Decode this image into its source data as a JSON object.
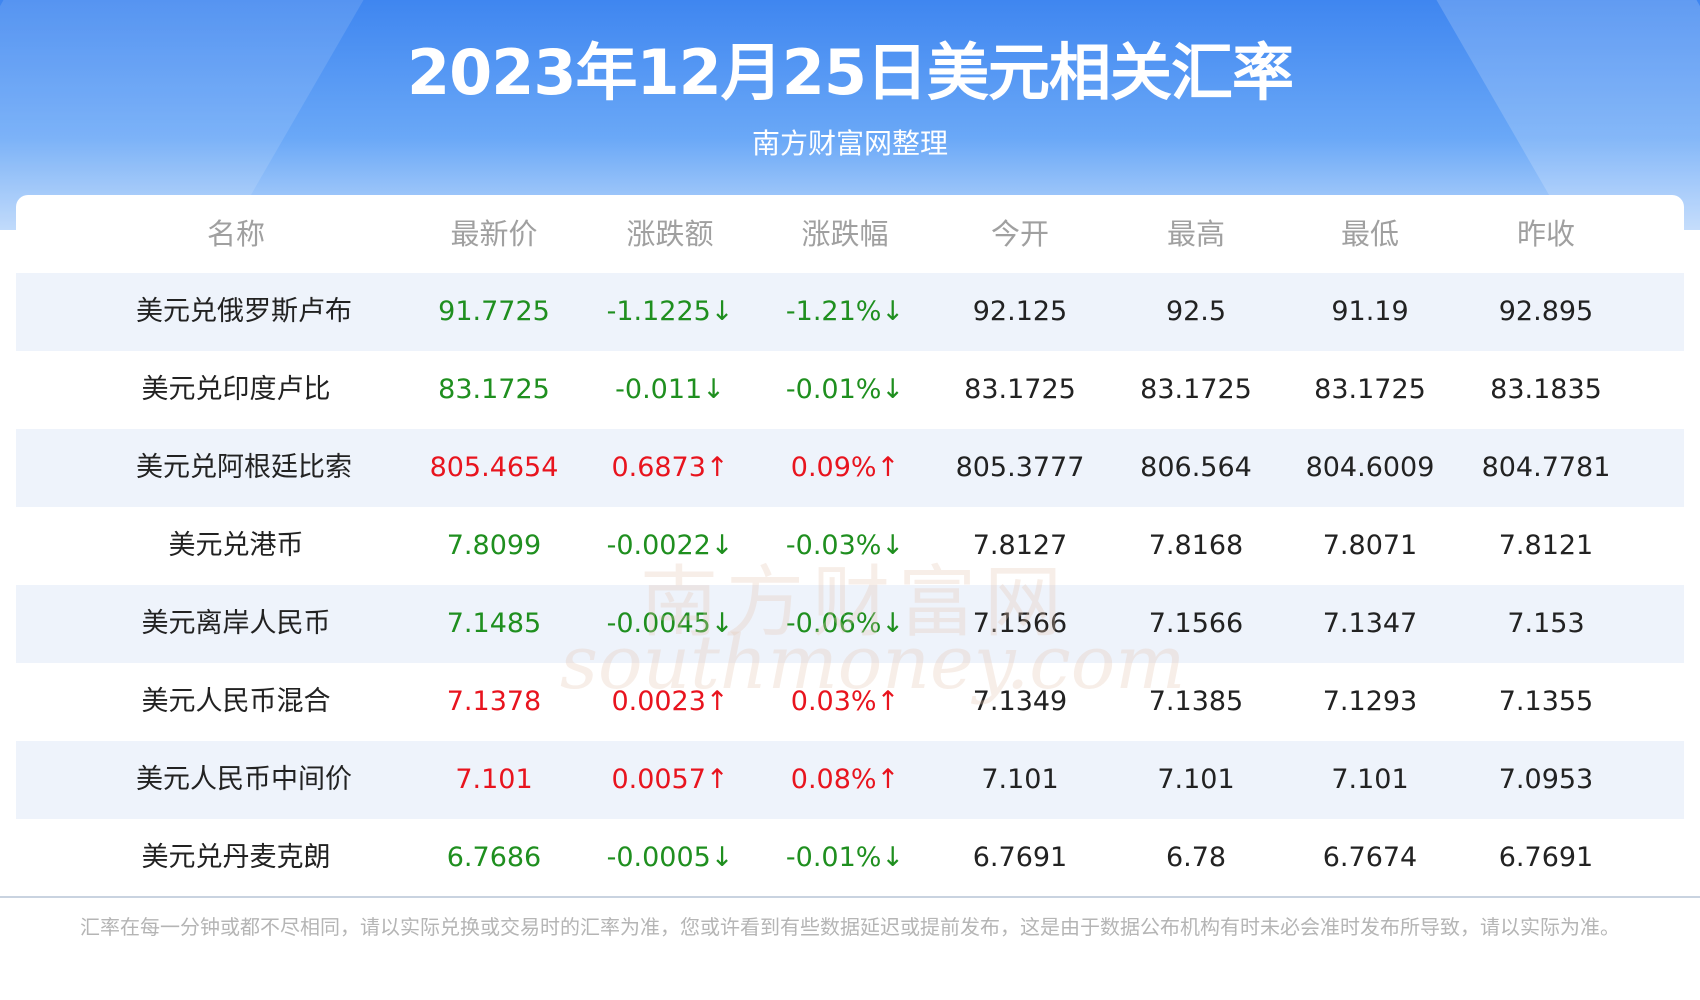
{
  "header": {
    "title": "2023年12月25日美元相关汇率",
    "subtitle": "南方财富网整理"
  },
  "table": {
    "columns": [
      "名称",
      "最新价",
      "涨跌额",
      "涨跌幅",
      "今开",
      "最高",
      "最低",
      "昨收"
    ],
    "rows": [
      {
        "cells": [
          "美元兑俄罗斯卢布",
          "91.7725",
          "-1.1225↓",
          "-1.21%↓",
          "92.125",
          "92.5",
          "91.19",
          "92.895"
        ],
        "color": "#1f8f1f"
      },
      {
        "cells": [
          "美元兑印度卢比",
          "83.1725",
          "-0.011↓",
          "-0.01%↓",
          "83.1725",
          "83.1725",
          "83.1725",
          "83.1835"
        ],
        "color": "#1f8f1f"
      },
      {
        "cells": [
          "美元兑阿根廷比索",
          "805.4654",
          "0.6873↑",
          "0.09%↑",
          "805.3777",
          "806.564",
          "804.6009",
          "804.7781"
        ],
        "color": "#e8141e"
      },
      {
        "cells": [
          "美元兑港币",
          "7.8099",
          "-0.0022↓",
          "-0.03%↓",
          "7.8127",
          "7.8168",
          "7.8071",
          "7.8121"
        ],
        "color": "#1f8f1f"
      },
      {
        "cells": [
          "美元离岸人民币",
          "7.1485",
          "-0.0045↓",
          "-0.06%↓",
          "7.1566",
          "7.1566",
          "7.1347",
          "7.153"
        ],
        "color": "#1f8f1f"
      },
      {
        "cells": [
          "美元人民币混合",
          "7.1378",
          "0.0023↑",
          "0.03%↑",
          "7.1349",
          "7.1385",
          "7.1293",
          "7.1355"
        ],
        "color": "#e8141e"
      },
      {
        "cells": [
          "美元人民币中间价",
          "7.101",
          "0.0057↑",
          "0.08%↑",
          "7.101",
          "7.101",
          "7.101",
          "7.0953"
        ],
        "color": "#e8141e"
      },
      {
        "cells": [
          "美元兑丹麦克朗",
          "6.7686",
          "-0.0005↓",
          "-0.01%↓",
          "6.7691",
          "6.78",
          "6.7674",
          "6.7691"
        ],
        "color": "#1f8f1f"
      }
    ]
  },
  "watermark": {
    "name": "南方财富网",
    "site": "southmoney.com"
  },
  "footer": {
    "note": "汇率在每一分钟或都不尽相同，请以实际兑换或交易时的汇率为准，您或许看到有些数据延迟或提前发布，这是由于数据公布机构有时未必会准时发布所导致，请以实际为准。"
  }
}
